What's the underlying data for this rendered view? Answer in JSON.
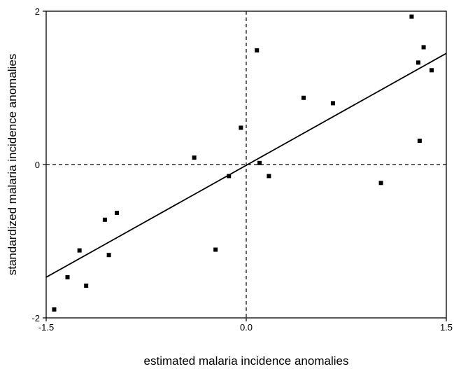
{
  "chart_data": {
    "type": "scatter",
    "title": "",
    "xlabel": "estimated malaria incidence anomalies",
    "ylabel": "standardized malaria incidence anomalies",
    "xlim": [
      -1.5,
      1.5
    ],
    "ylim": [
      -2,
      2
    ],
    "xticks": [
      {
        "value": -1.5,
        "label": "-1.5"
      },
      {
        "value": 0.0,
        "label": "0.0"
      },
      {
        "value": 1.5,
        "label": "1.5"
      }
    ],
    "yticks": [
      {
        "value": -2,
        "label": "-2"
      },
      {
        "value": 0,
        "label": "0"
      },
      {
        "value": 2,
        "label": "2"
      }
    ],
    "grid": false,
    "reference_lines": {
      "x": 0,
      "y": 0,
      "style": "dashed"
    },
    "fit_line": {
      "x": [
        -1.5,
        1.5
      ],
      "y": [
        -1.47,
        1.45
      ]
    },
    "points": [
      {
        "x": -1.44,
        "y": -1.89
      },
      {
        "x": -1.34,
        "y": -1.47
      },
      {
        "x": -1.25,
        "y": -1.12
      },
      {
        "x": -1.2,
        "y": -1.58
      },
      {
        "x": -1.06,
        "y": -0.72
      },
      {
        "x": -1.03,
        "y": -1.18
      },
      {
        "x": -0.97,
        "y": -0.63
      },
      {
        "x": -0.39,
        "y": 0.09
      },
      {
        "x": -0.23,
        "y": -1.11
      },
      {
        "x": -0.13,
        "y": -0.15
      },
      {
        "x": -0.04,
        "y": 0.48
      },
      {
        "x": 0.08,
        "y": 1.49
      },
      {
        "x": 0.1,
        "y": 0.02
      },
      {
        "x": 0.17,
        "y": -0.15
      },
      {
        "x": 0.43,
        "y": 0.87
      },
      {
        "x": 0.65,
        "y": 0.8
      },
      {
        "x": 1.01,
        "y": -0.24
      },
      {
        "x": 1.24,
        "y": 1.93
      },
      {
        "x": 1.29,
        "y": 1.33
      },
      {
        "x": 1.3,
        "y": 0.31
      },
      {
        "x": 1.33,
        "y": 1.53
      },
      {
        "x": 1.39,
        "y": 1.23
      }
    ]
  }
}
